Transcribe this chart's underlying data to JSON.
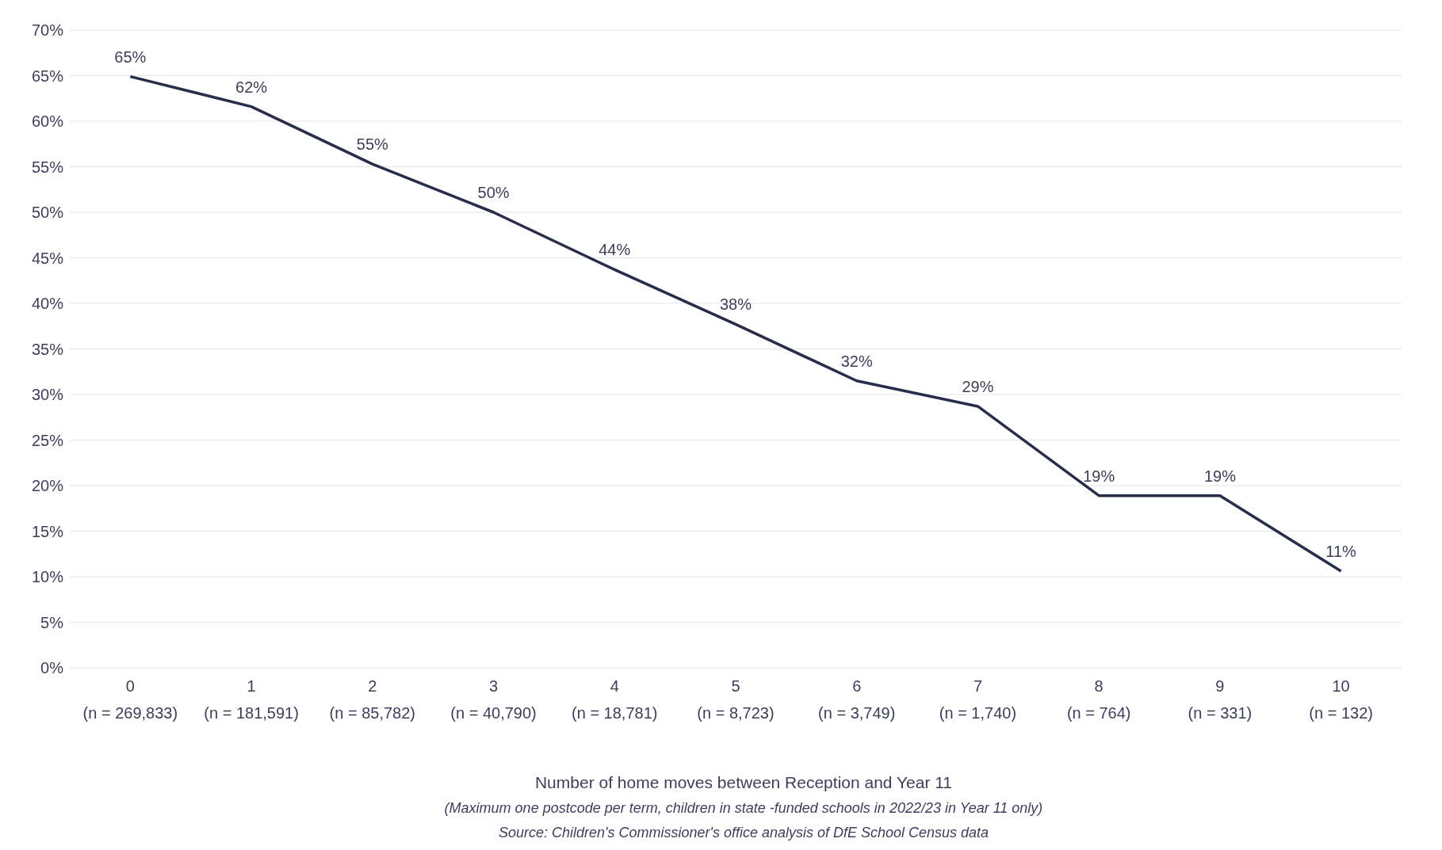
{
  "chart_data": {
    "type": "line",
    "xlabel": "Number of home moves between Reception and Year 11",
    "annotations": [
      "(Maximum one postcode per term, children in state -funded schools in 2022/23 in Year 11 only)",
      "Source: Children's Commissioner's office analysis of DfE School Census data"
    ],
    "categories": [
      "0\n(n = 269,833)",
      "1\n(n = 181,591)",
      "2\n(n = 85,782)",
      "3\n(n = 40,790)",
      "4\n(n = 18,781)",
      "5\n(n = 8,723)",
      "6\n(n = 3,749)",
      "7\n(n = 1,740)",
      "8\n(n = 764)",
      "9\n(n = 331)",
      "10\n(n = 132)"
    ],
    "series": [
      {
        "color": "#272d4a",
        "values": [
          64.9,
          61.6,
          55.3,
          50.0,
          43.7,
          37.7,
          31.5,
          28.7,
          18.9,
          18.9,
          10.6
        ],
        "value_labels": [
          "65%",
          "62%",
          "55%",
          "50%",
          "44%",
          "38%",
          "32%",
          "29%",
          "19%",
          "19%",
          "11%"
        ]
      }
    ],
    "ylim": [
      0,
      70
    ],
    "yticks": [
      {
        "value": 0,
        "label": "0%"
      },
      {
        "value": 5,
        "label": "5%"
      },
      {
        "value": 10,
        "label": "10%"
      },
      {
        "value": 15,
        "label": "15%"
      },
      {
        "value": 20,
        "label": "20%"
      },
      {
        "value": 25,
        "label": "25%"
      },
      {
        "value": 30,
        "label": "30%"
      },
      {
        "value": 35,
        "label": "35%"
      },
      {
        "value": 40,
        "label": "40%"
      },
      {
        "value": 45,
        "label": "45%"
      },
      {
        "value": 50,
        "label": "50%"
      },
      {
        "value": 55,
        "label": "55%"
      },
      {
        "value": 60,
        "label": "60%"
      },
      {
        "value": 65,
        "label": "65%"
      },
      {
        "value": 70,
        "label": "70%"
      }
    ],
    "grid": "y",
    "legend": false,
    "marker": "none",
    "line_style": "solid"
  }
}
